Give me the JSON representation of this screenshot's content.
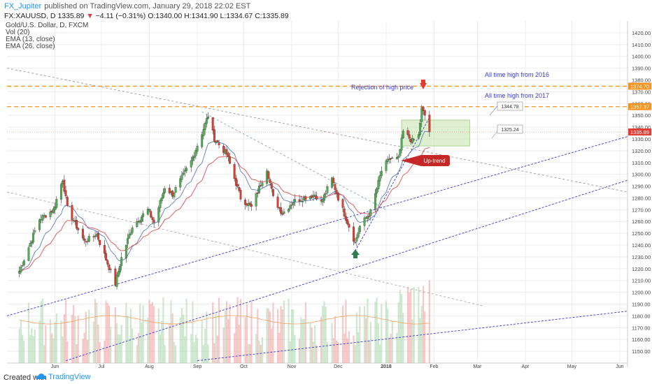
{
  "header": {
    "author": "FX_Jupiter",
    "published": "published on TradingView.com, January 29, 2018 22:02 EST",
    "symbol_line": "FX:XAUUSD, D",
    "last": "1335.89",
    "change": "−4.11 (−0.31%)",
    "open": "O:1340.00",
    "high": "H:1341.90",
    "low": "L:1334.67",
    "close": "C:1335.89"
  },
  "legend": {
    "instrument": "Gold/U.S. Dollar, D, FXCM",
    "vol": "Vol (20)",
    "ema13": "EMA (13, close)",
    "ema26": "EMA (26, close)"
  },
  "footer": {
    "created_with": "Created with",
    "brand": "TradingView"
  },
  "colors": {
    "up": "#4caf50",
    "down": "#e23b30",
    "ema13": "#5b7fb8",
    "ema26": "#e05050",
    "orange": "#f7931e",
    "trend_blue": "#3a3ad0",
    "zone": "#c8e6b0",
    "annotation_text": "#3a3ad0"
  },
  "chart_data": {
    "type": "candlestick",
    "title": "Gold/U.S. Dollar, D, FXCM",
    "ylim": [
      1140,
      1430
    ],
    "y_ticks": [
      1150,
      1160,
      1170,
      1180,
      1190,
      1200,
      1210,
      1220,
      1230,
      1240,
      1250,
      1260,
      1270,
      1280,
      1290,
      1300,
      1310,
      1320,
      1330,
      1340,
      1350,
      1360,
      1370,
      1380,
      1390,
      1400,
      1410,
      1420
    ],
    "x_ticks": [
      "Jun",
      "Jul",
      "Aug",
      "Sep",
      "Oct",
      "Nov",
      "Dec",
      "2018",
      "Feb",
      "Mar",
      "Apr",
      "May",
      "Jun"
    ],
    "price_anchors": [
      [
        "2017-05-09",
        1218
      ],
      [
        "2017-05-12",
        1228
      ],
      [
        "2017-05-22",
        1262
      ],
      [
        "2017-05-31",
        1270
      ],
      [
        "2017-06-06",
        1296
      ],
      [
        "2017-06-09",
        1271
      ],
      [
        "2017-06-20",
        1243
      ],
      [
        "2017-06-28",
        1249
      ],
      [
        "2017-07-10",
        1207
      ],
      [
        "2017-07-14",
        1229
      ],
      [
        "2017-07-21",
        1256
      ],
      [
        "2017-07-31",
        1270
      ],
      [
        "2017-08-04",
        1259
      ],
      [
        "2017-08-11",
        1289
      ],
      [
        "2017-08-16",
        1283
      ],
      [
        "2017-08-28",
        1311
      ],
      [
        "2017-09-04",
        1335
      ],
      [
        "2017-09-08",
        1350
      ],
      [
        "2017-09-12",
        1330
      ],
      [
        "2017-09-20",
        1317
      ],
      [
        "2017-09-29",
        1280
      ],
      [
        "2017-10-06",
        1272
      ],
      [
        "2017-10-16",
        1305
      ],
      [
        "2017-10-20",
        1280
      ],
      [
        "2017-10-26",
        1267
      ],
      [
        "2017-11-02",
        1277
      ],
      [
        "2017-11-16",
        1283
      ],
      [
        "2017-11-20",
        1276
      ],
      [
        "2017-11-27",
        1296
      ],
      [
        "2017-12-01",
        1280
      ],
      [
        "2017-12-06",
        1263
      ],
      [
        "2017-12-12",
        1242
      ],
      [
        "2017-12-15",
        1256
      ],
      [
        "2017-12-22",
        1268
      ],
      [
        "2017-12-29",
        1303
      ],
      [
        "2018-01-03",
        1313
      ],
      [
        "2018-01-09",
        1313
      ],
      [
        "2018-01-12",
        1336
      ],
      [
        "2018-01-18",
        1328
      ],
      [
        "2018-01-22",
        1333
      ],
      [
        "2018-01-24",
        1355
      ],
      [
        "2018-01-26",
        1350
      ],
      [
        "2018-01-29",
        1335.89
      ]
    ],
    "annotations": {
      "ath_2016_label": "All time high from 2016",
      "ath_2016_value": 1374.7,
      "ath_2017_label": "All time high from 2017",
      "ath_2017_value": 1357.37,
      "rejection_label": "Rejection of high price",
      "uptrend_label": "Up-trend",
      "zone_top_value": "1344.78",
      "zone_bottom_value": "1325.24",
      "price_tag_2016": "1374.70",
      "price_tag_2017": "1357.37",
      "price_tag_last": "1335.89"
    }
  }
}
